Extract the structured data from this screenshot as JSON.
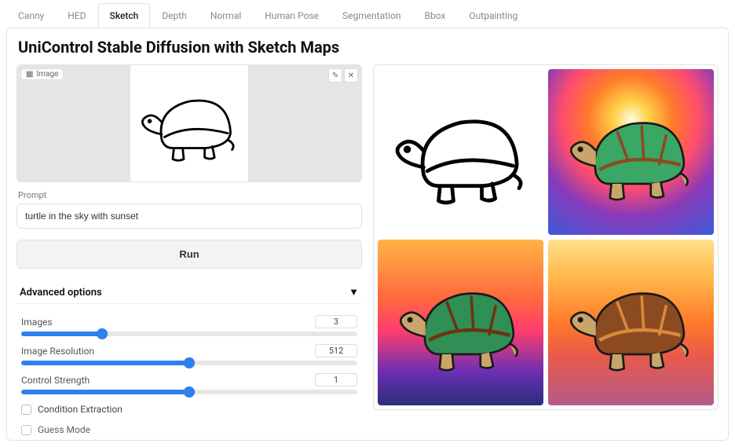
{
  "tabs": {
    "items": [
      "Canny",
      "HED",
      "Sketch",
      "Depth",
      "Normal",
      "Human Pose",
      "Segmentation",
      "Bbox",
      "Outpainting"
    ],
    "active_index": 2
  },
  "title": "UniControl Stable Diffusion with Sketch Maps",
  "upload": {
    "badge_label": "Image",
    "edit_icon": "✎",
    "close_icon": "✕"
  },
  "prompt": {
    "label": "Prompt",
    "value": "turtle in the sky with sunset"
  },
  "run_label": "Run",
  "advanced": {
    "title": "Advanced options",
    "caret": "▼",
    "sliders": [
      {
        "label": "Images",
        "value": "3",
        "fill_pct": 24
      },
      {
        "label": "Image Resolution",
        "value": "512",
        "fill_pct": 50
      },
      {
        "label": "Control Strength",
        "value": "1",
        "fill_pct": 50
      }
    ],
    "checkboxes": [
      {
        "label": "Condition Extraction",
        "checked": false
      },
      {
        "label": "Guess Mode",
        "checked": false
      }
    ]
  },
  "gallery": {
    "tiles": [
      {
        "kind": "sketch"
      },
      {
        "kind": "sunset",
        "bg": "radial-gradient(circle at 50% 30%, #fffbe0 0%, #ffd24a 12%, #ff7a2a 30%, #ff4d6d 48%, #8a3ab9 68%, #3b5bd9 100%)",
        "shell": "#3aa765",
        "shell2": "#8c4a20"
      },
      {
        "kind": "sunset",
        "bg": "linear-gradient(180deg, #ffb347 0%, #ff6a3d 35%, #ff3d6e 55%, #6b2fb3 80%, #2b2d7a 100%)",
        "shell": "#2f8f55",
        "shell2": "#6e3310"
      },
      {
        "kind": "sunset",
        "bg": "linear-gradient(180deg, #ffe08a 0%, #ffb347 25%, #ff7a2a 50%, #e95a4a 70%, #b35a8a 100%)",
        "shell": "#8c4a20",
        "shell2": "#d98a3a"
      }
    ]
  },
  "colors": {
    "accent": "#2f80ed",
    "border": "#e3e3e3",
    "muted_text": "#888888"
  }
}
